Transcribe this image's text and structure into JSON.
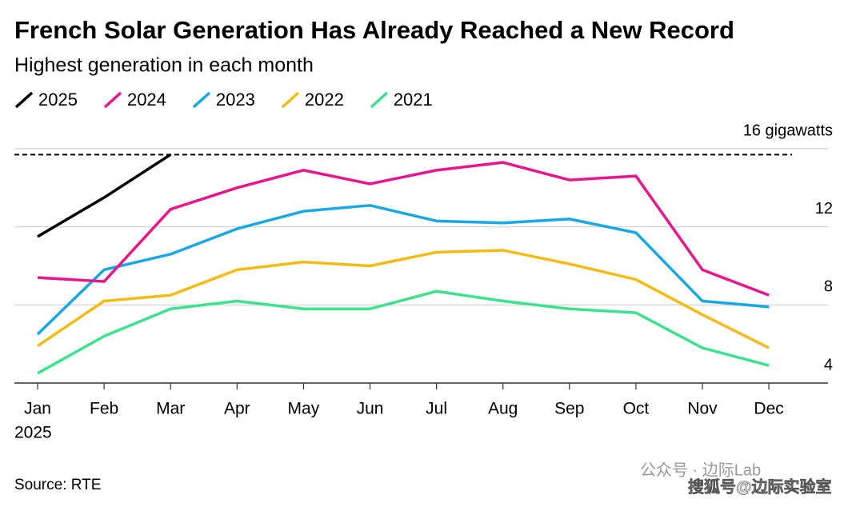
{
  "chart_data": {
    "type": "line",
    "title": "French Solar Generation Has Already Reached a New Record",
    "subtitle": "Highest generation in each month",
    "categories": [
      "Jan",
      "Feb",
      "Mar",
      "Apr",
      "May",
      "Jun",
      "Jul",
      "Aug",
      "Sep",
      "Oct",
      "Nov",
      "Dec"
    ],
    "year_label": "2025",
    "series": [
      {
        "name": "2025",
        "color": "#000000",
        "values": [
          11.5,
          13.5,
          15.7,
          null,
          null,
          null,
          null,
          null,
          null,
          null,
          null,
          null
        ]
      },
      {
        "name": "2024",
        "color": "#e8168c",
        "values": [
          9.4,
          9.2,
          12.9,
          14.0,
          14.9,
          14.2,
          14.9,
          15.3,
          14.4,
          14.6,
          9.8,
          8.5
        ]
      },
      {
        "name": "2023",
        "color": "#1aa7e6",
        "values": [
          6.5,
          9.8,
          10.6,
          11.9,
          12.8,
          13.1,
          12.3,
          12.2,
          12.4,
          11.7,
          8.2,
          7.9
        ]
      },
      {
        "name": "2022",
        "color": "#f5bb14",
        "values": [
          5.9,
          8.2,
          8.5,
          9.8,
          10.2,
          10.0,
          10.7,
          10.8,
          10.1,
          9.3,
          7.5,
          5.8
        ]
      },
      {
        "name": "2021",
        "color": "#3de28e",
        "values": [
          4.5,
          6.4,
          7.8,
          8.2,
          7.8,
          7.8,
          8.7,
          8.2,
          7.8,
          7.6,
          5.8,
          4.9
        ]
      }
    ],
    "reference_line": 15.7,
    "ylim": [
      4,
      16
    ],
    "yticks": [
      4,
      8,
      12,
      {
        "value": 16,
        "label": "16 gigawatts"
      }
    ],
    "grid": true,
    "source": "Source: RTE",
    "watermarks": [
      "公众号 · 边际Lab",
      "搜狐号@边际实验室"
    ]
  }
}
